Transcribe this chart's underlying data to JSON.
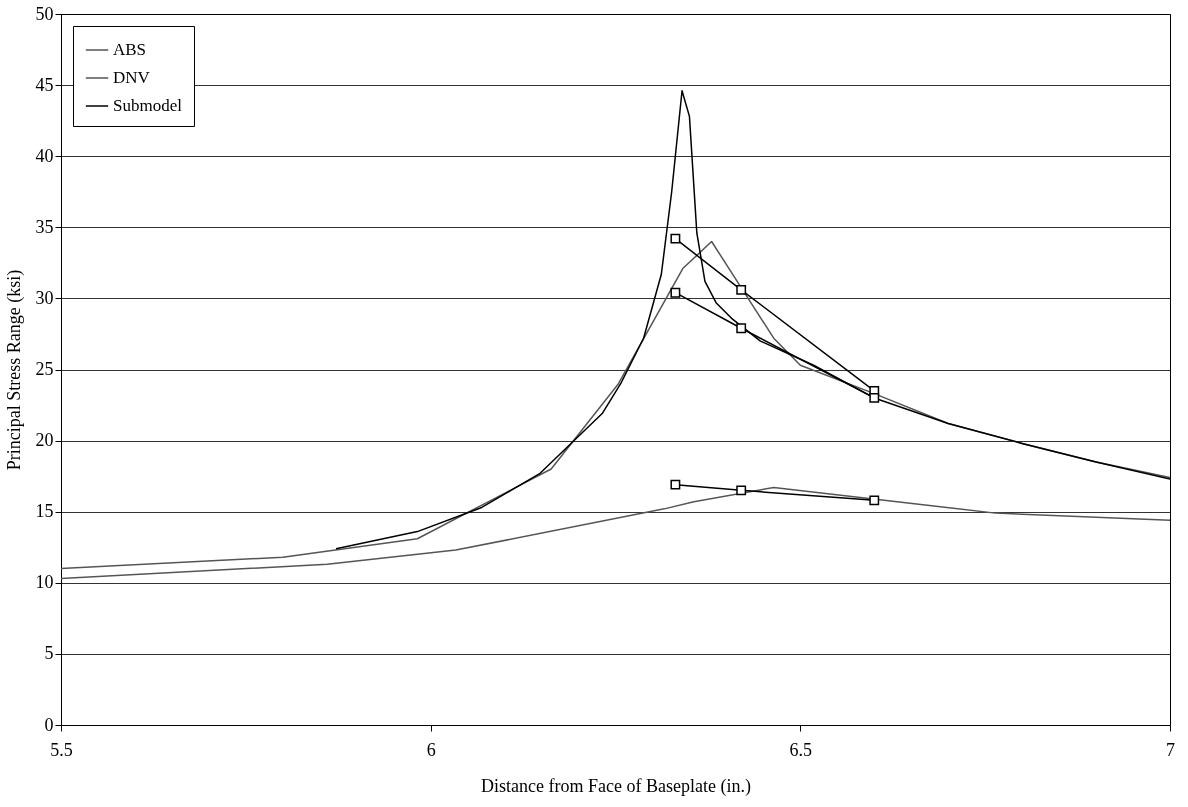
{
  "chart_data": {
    "type": "line",
    "xlabel": "Distance from Face of Baseplate (in.)",
    "ylabel": "Principal Stress Range (ksi)",
    "xlim": [
      5.5,
      7
    ],
    "xticks": [
      5.5,
      6,
      6.5,
      7
    ],
    "ylim": [
      0,
      50
    ],
    "yticks": [
      0,
      5,
      10,
      15,
      20,
      25,
      30,
      35,
      40,
      45,
      50
    ],
    "grid": "y",
    "legend": "top left",
    "line_style": "solid",
    "series": [
      {
        "name": "ABS",
        "color": "#555555",
        "x": [
          5.5,
          5.8,
          5.982,
          6.163,
          6.254,
          6.341,
          6.38,
          6.464,
          6.5,
          6.6,
          6.7,
          6.8,
          6.9,
          7
        ],
        "values": [
          11.0,
          11.8,
          13.1,
          18.0,
          24.0,
          32.1,
          34.0,
          27.2,
          25.3,
          23.3,
          21.2,
          19.8,
          18.5,
          17.4
        ]
      },
      {
        "name": "DNV",
        "color": "#555555",
        "x": [
          5.5,
          5.86,
          6.034,
          6.316,
          6.356,
          6.464,
          6.764,
          7
        ],
        "values": [
          10.3,
          11.3,
          12.3,
          15.2,
          15.7,
          16.7,
          14.9,
          14.4
        ]
      },
      {
        "name": "Submodel",
        "color": "#000000",
        "x": [
          5.872,
          5.982,
          6.069,
          6.148,
          6.232,
          6.257,
          6.288,
          6.312,
          6.319,
          6.326,
          6.34,
          6.35,
          6.36,
          6.371,
          6.386,
          6.407,
          6.446,
          6.518,
          6.6,
          6.7,
          6.8,
          6.9,
          7
        ],
        "values": [
          12.4,
          13.6,
          15.3,
          17.7,
          21.9,
          24.0,
          27.2,
          31.7,
          34.6,
          37.5,
          44.6,
          42.8,
          34.6,
          31.2,
          29.7,
          28.6,
          27.0,
          25.3,
          23.0,
          21.2,
          19.8,
          18.5,
          17.3
        ]
      },
      {
        "color": "#000000",
        "marker": "square",
        "x": [
          6.331,
          6.42,
          6.6
        ],
        "values": [
          34.2,
          30.6,
          23.5
        ]
      },
      {
        "color": "#000000",
        "marker": "square",
        "x": [
          6.331,
          6.42,
          6.6
        ],
        "values": [
          30.4,
          27.9,
          23.0
        ]
      },
      {
        "color": "#000000",
        "marker": "square",
        "x": [
          6.331,
          6.42,
          6.6
        ],
        "values": [
          16.9,
          16.5,
          15.8
        ]
      }
    ]
  }
}
